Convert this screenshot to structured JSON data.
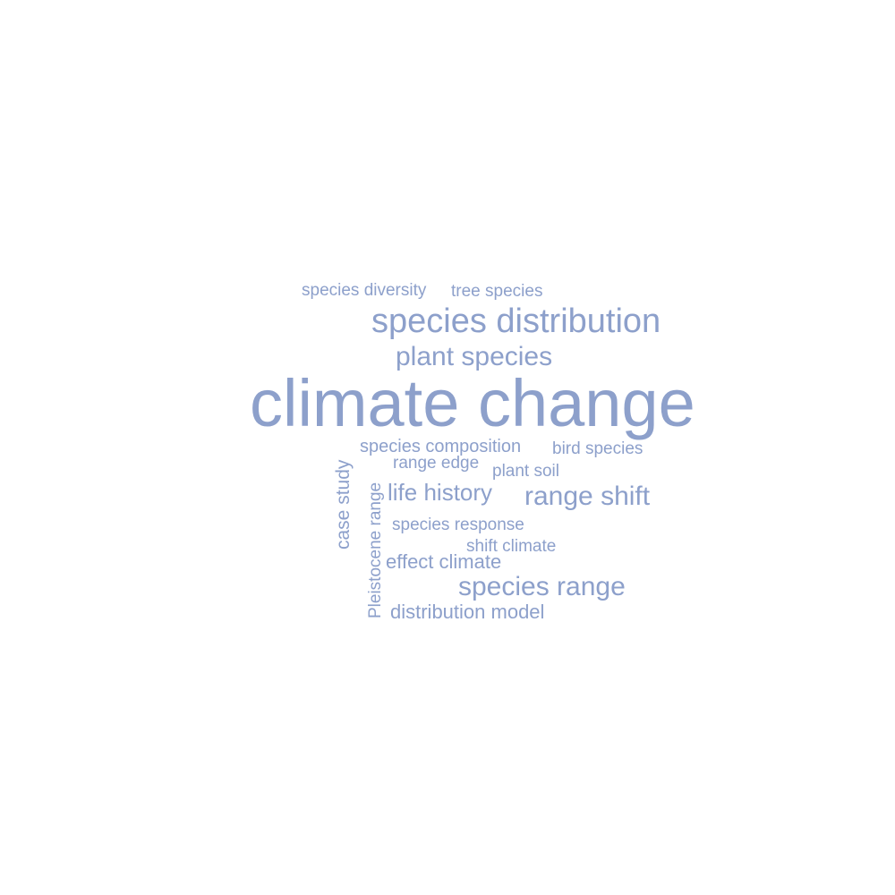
{
  "word_cloud": {
    "color": "#8da0cb",
    "words": [
      {
        "id": "climate-change",
        "text": "climate change"
      },
      {
        "id": "species-distribution",
        "text": "species distribution"
      },
      {
        "id": "plant-species",
        "text": "plant species"
      },
      {
        "id": "range-shift",
        "text": "range shift"
      },
      {
        "id": "species-range",
        "text": "species range"
      },
      {
        "id": "life-history",
        "text": "life history"
      },
      {
        "id": "distribution-model",
        "text": "distribution model"
      },
      {
        "id": "effect-climate",
        "text": "effect climate"
      },
      {
        "id": "species-composition",
        "text": "species composition"
      },
      {
        "id": "species-diversity",
        "text": "species diversity"
      },
      {
        "id": "tree-species",
        "text": "tree species"
      },
      {
        "id": "bird-species",
        "text": "bird species"
      },
      {
        "id": "range-edge",
        "text": "range edge"
      },
      {
        "id": "plant-soil",
        "text": "plant soil"
      },
      {
        "id": "species-response",
        "text": "species response"
      },
      {
        "id": "shift-climate",
        "text": "shift climate"
      },
      {
        "id": "case-study",
        "text": "case study"
      },
      {
        "id": "pleistocene-range",
        "text": "Pleistocene range"
      }
    ]
  }
}
